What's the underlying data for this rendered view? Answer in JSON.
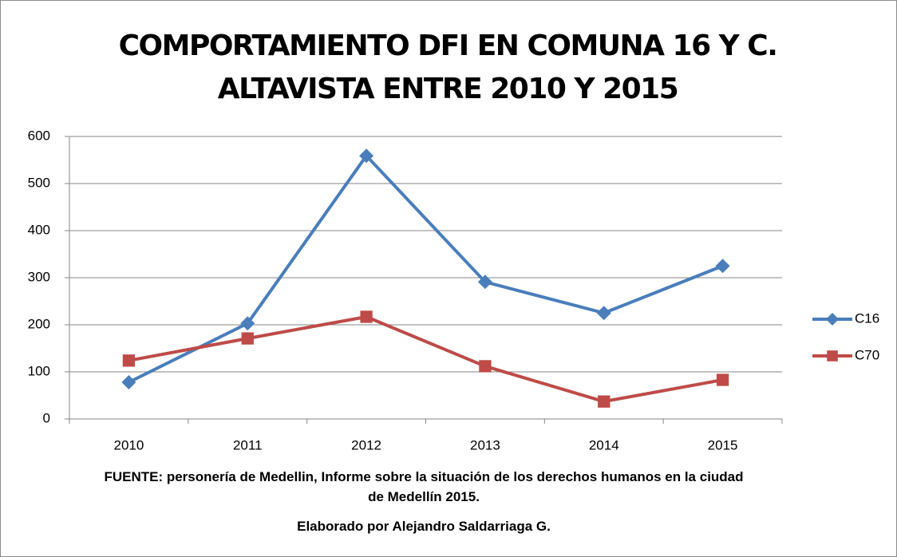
{
  "chart_data": {
    "type": "line",
    "title": "COMPORTAMIENTO DFI EN COMUNA 16 Y C. ALTAVISTA ENTRE 2010 Y 2015",
    "source": "FUENTE: personería de Medellin, Informe sobre la situación de los derechos humanos en la ciudad de Medellín 2015.",
    "credit": "Elaborado por Alejandro Saldarriaga G.",
    "categories": [
      "2010",
      "2011",
      "2012",
      "2013",
      "2014",
      "2015"
    ],
    "series": [
      {
        "name": "C16",
        "color": "#4a7ebb",
        "marker": "diamond",
        "values": [
          78,
          203,
          559,
          291,
          225,
          325
        ]
      },
      {
        "name": "C70",
        "color": "#be4b48",
        "marker": "square",
        "values": [
          124,
          171,
          217,
          112,
          37,
          83
        ]
      }
    ],
    "ylim": [
      0,
      600
    ],
    "yticks": [
      0,
      100,
      200,
      300,
      400,
      500,
      600
    ],
    "grid": true,
    "legend": "right"
  }
}
